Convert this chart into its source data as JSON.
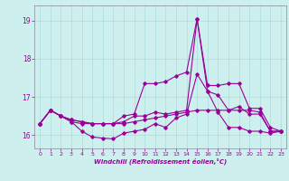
{
  "xlabel": "Windchill (Refroidissement éolien,°C)",
  "bg_color": "#cdf0ee",
  "grid_color": "#aadddd",
  "line_color": "#990099",
  "spine_color": "#888899",
  "xlim": [
    -0.5,
    23.5
  ],
  "ylim": [
    15.65,
    19.4
  ],
  "yticks": [
    16,
    17,
    18,
    19
  ],
  "xticks": [
    0,
    1,
    2,
    3,
    4,
    5,
    6,
    7,
    8,
    9,
    10,
    11,
    12,
    13,
    14,
    15,
    16,
    17,
    18,
    19,
    20,
    21,
    22,
    23
  ],
  "lines": [
    [
      16.3,
      16.65,
      16.5,
      16.35,
      16.1,
      15.95,
      15.92,
      15.9,
      16.05,
      16.1,
      16.15,
      16.3,
      16.2,
      16.45,
      16.55,
      17.6,
      17.15,
      16.6,
      16.2,
      16.2,
      16.1,
      16.1,
      16.05,
      16.1
    ],
    [
      16.3,
      16.65,
      16.5,
      16.4,
      16.35,
      16.3,
      16.3,
      16.3,
      16.3,
      16.35,
      16.4,
      16.45,
      16.5,
      16.55,
      16.6,
      16.65,
      16.65,
      16.65,
      16.65,
      16.65,
      16.65,
      16.6,
      16.1,
      16.1
    ],
    [
      16.3,
      16.65,
      16.5,
      16.35,
      16.3,
      16.3,
      16.3,
      16.3,
      16.35,
      16.5,
      16.5,
      16.6,
      16.55,
      16.6,
      16.65,
      19.05,
      17.15,
      17.05,
      16.65,
      16.75,
      16.55,
      16.55,
      16.1,
      16.1
    ],
    [
      16.3,
      16.65,
      16.5,
      16.4,
      16.35,
      16.3,
      16.3,
      16.3,
      16.5,
      16.55,
      17.35,
      17.35,
      17.4,
      17.55,
      17.65,
      19.05,
      17.3,
      17.3,
      17.35,
      17.35,
      16.7,
      16.7,
      16.2,
      16.1
    ]
  ]
}
